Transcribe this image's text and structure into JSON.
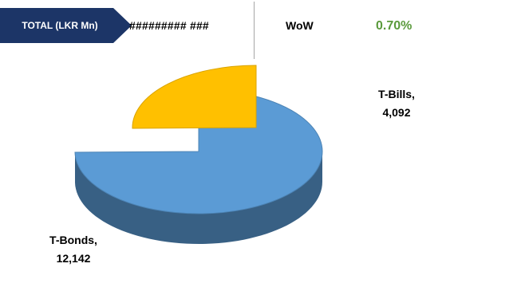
{
  "header": {
    "total_label": "TOTAL (LKR Mn)",
    "total_value": "######### ###",
    "wow_label": "WoW",
    "wow_value": "0.70%",
    "brand_color": "#1c3567",
    "wow_color": "#5b9a3c"
  },
  "chart_data": {
    "type": "pie",
    "style": "3d-exploded",
    "title": "",
    "slices": [
      {
        "label": "T-Bonds",
        "value": 12142,
        "value_text": "12,142",
        "color": "#5b9bd5"
      },
      {
        "label": "T-Bills",
        "value": 4092,
        "value_text": "4,092",
        "color": "#ffc000"
      }
    ]
  }
}
